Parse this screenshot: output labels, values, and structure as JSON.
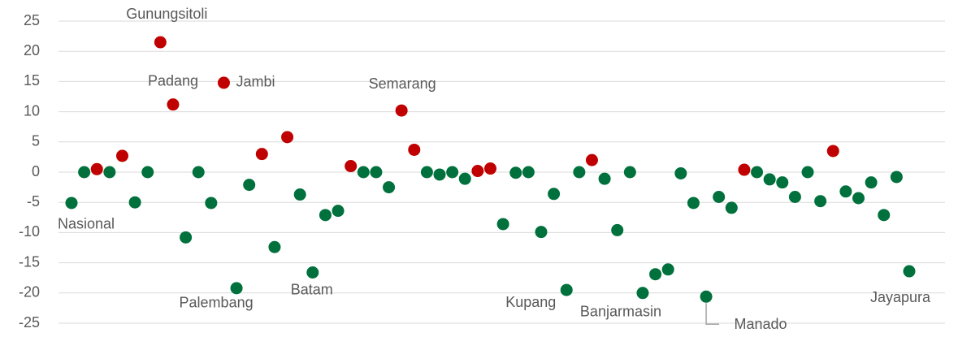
{
  "chart_data": {
    "type": "scatter",
    "categories": [
      "Nasional",
      null,
      null,
      null,
      null,
      null,
      null,
      "Gunungsitoli",
      "Padang",
      null,
      null,
      null,
      "Jambi",
      "Palembang",
      null,
      null,
      null,
      null,
      null,
      "Batam",
      null,
      null,
      null,
      null,
      null,
      null,
      "Semarang",
      null,
      null,
      null,
      null,
      null,
      null,
      null,
      null,
      null,
      null,
      null,
      null,
      "Kupang",
      null,
      null,
      null,
      null,
      null,
      "Banjarmasin",
      null,
      null,
      null,
      null,
      "Manado",
      null,
      null,
      null,
      null,
      null,
      null,
      null,
      null,
      null,
      null,
      null,
      null,
      null,
      null,
      null,
      "Jayapura"
    ],
    "values": [
      -5.1,
      0,
      0.5,
      0,
      2.7,
      -5,
      0,
      21.5,
      11.2,
      -10.8,
      0,
      -5.1,
      14.8,
      -19.2,
      -2.1,
      3,
      -12.4,
      5.8,
      -3.7,
      -16.6,
      -7.1,
      -6.4,
      1,
      0,
      0,
      -2.5,
      10.2,
      3.7,
      0,
      -0.4,
      0,
      -1.1,
      0.2,
      0.6,
      -8.6,
      -0.1,
      0,
      -9.9,
      -3.6,
      -19.5,
      0,
      2,
      -1.1,
      -9.6,
      0,
      -20,
      -16.9,
      -16.1,
      -0.2,
      -5.1,
      -20.6,
      -4.1,
      -5.9,
      0.4,
      0,
      -1.2,
      -1.7,
      -4.1,
      0,
      -4.8,
      3.5,
      -3.2,
      -4.3,
      -1.7,
      -7.1,
      -0.8,
      -16.4
    ],
    "colors": {
      "positive": "#c00000",
      "other": "#00703c"
    },
    "ylim": [
      -25,
      25
    ],
    "yticks": [
      -25,
      -20,
      -15,
      -10,
      -5,
      0,
      5,
      10,
      15,
      20,
      25
    ],
    "grid": true
  }
}
